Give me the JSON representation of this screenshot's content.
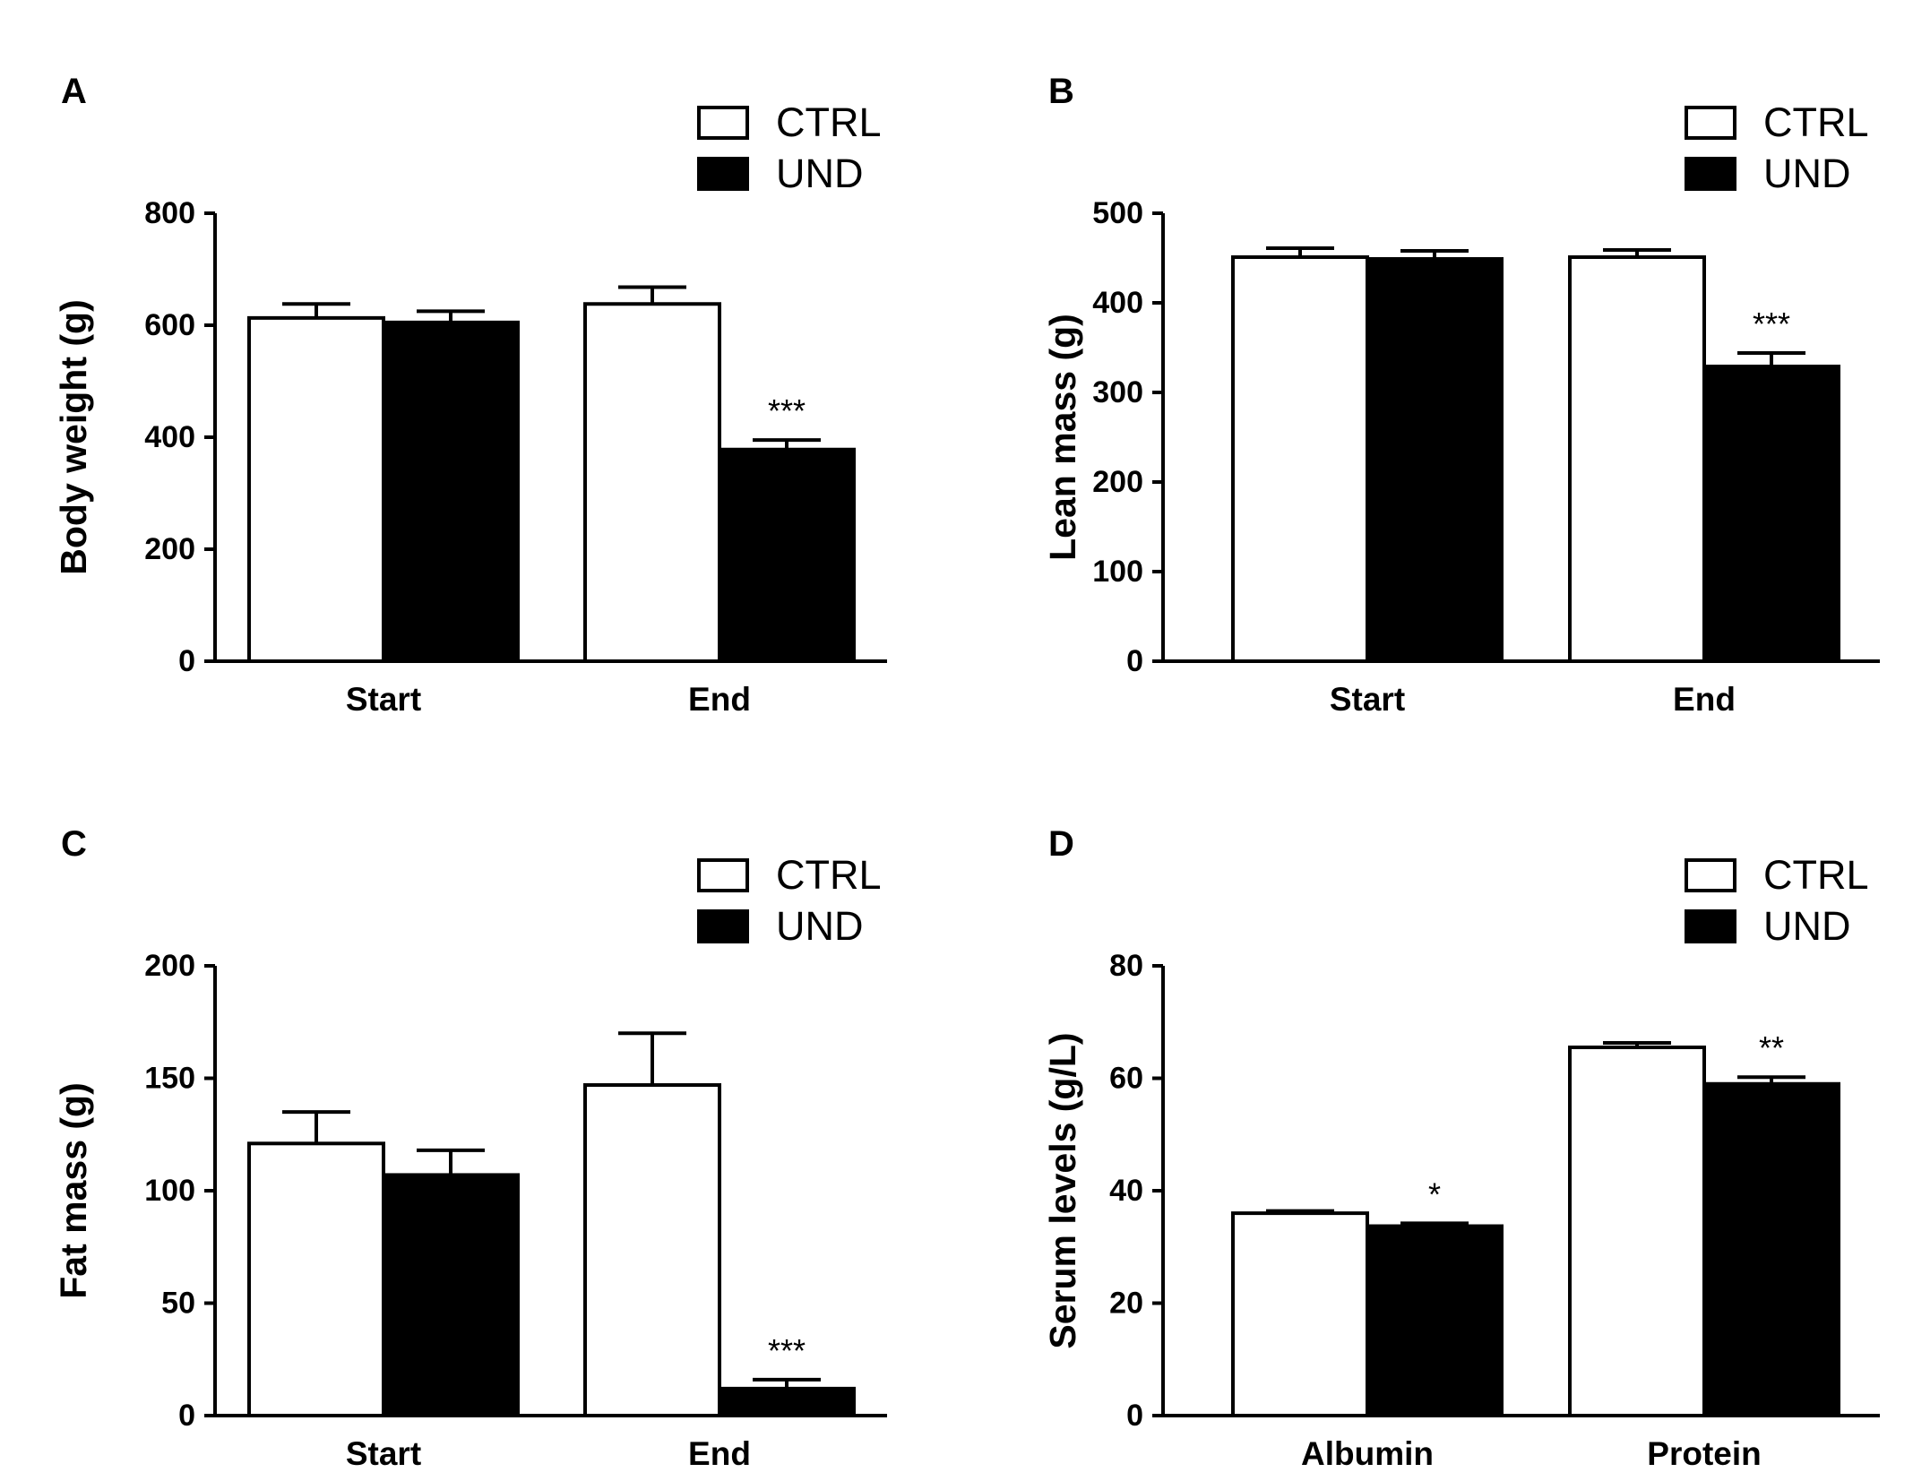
{
  "legend": {
    "ctrl": "CTRL",
    "und": "UND"
  },
  "colors": {
    "ctrl_fill": "#ffffff",
    "und_fill": "#000000",
    "stroke": "#000000"
  },
  "chart_data": [
    {
      "panel": "A",
      "type": "bar",
      "ylabel": "Body weight (g)",
      "xlabel": "",
      "ylim": [
        0,
        800
      ],
      "yticks": [
        0,
        200,
        400,
        600,
        800
      ],
      "categories": [
        "Start",
        "End"
      ],
      "series": [
        {
          "name": "CTRL",
          "values": [
            613,
            638
          ],
          "errors": [
            25,
            30
          ]
        },
        {
          "name": "UND",
          "values": [
            605,
            378
          ],
          "errors": [
            20,
            17
          ]
        }
      ],
      "annotations": [
        {
          "category": "End",
          "series": "UND",
          "text": "***"
        }
      ],
      "legend_position": "top-right"
    },
    {
      "panel": "B",
      "type": "bar",
      "ylabel": "Lean mass (g)",
      "xlabel": "",
      "ylim": [
        0,
        500
      ],
      "yticks": [
        0,
        100,
        200,
        300,
        400,
        500
      ],
      "categories": [
        "Start",
        "End"
      ],
      "series": [
        {
          "name": "CTRL",
          "values": [
            451,
            451
          ],
          "errors": [
            10,
            8
          ]
        },
        {
          "name": "UND",
          "values": [
            449,
            329
          ],
          "errors": [
            9,
            15
          ]
        }
      ],
      "annotations": [
        {
          "category": "End",
          "series": "UND",
          "text": "***"
        }
      ],
      "legend_position": "top-right"
    },
    {
      "panel": "C",
      "type": "bar",
      "ylabel": "Fat mass (g)",
      "xlabel": "",
      "ylim": [
        0,
        200
      ],
      "yticks": [
        0,
        50,
        100,
        150,
        200
      ],
      "categories": [
        "Start",
        "End"
      ],
      "series": [
        {
          "name": "CTRL",
          "values": [
            121,
            147
          ],
          "errors": [
            14,
            23
          ]
        },
        {
          "name": "UND",
          "values": [
            107,
            12
          ],
          "errors": [
            11,
            4
          ]
        }
      ],
      "annotations": [
        {
          "category": "End",
          "series": "UND",
          "text": "***"
        }
      ],
      "legend_position": "top-right"
    },
    {
      "panel": "D",
      "type": "bar",
      "ylabel": "Serum levels (g/L)",
      "xlabel": "",
      "ylim": [
        0,
        80
      ],
      "yticks": [
        0,
        20,
        40,
        60,
        80
      ],
      "categories": [
        "Albumin",
        "Protein"
      ],
      "series": [
        {
          "name": "CTRL",
          "values": [
            36,
            65.5
          ],
          "errors": [
            0.4,
            0.8
          ]
        },
        {
          "name": "UND",
          "values": [
            33.7,
            59
          ],
          "errors": [
            0.5,
            1.2
          ]
        }
      ],
      "annotations": [
        {
          "category": "Albumin",
          "series": "UND",
          "text": "*"
        },
        {
          "category": "Protein",
          "series": "UND",
          "text": "**"
        }
      ],
      "legend_position": "top-right"
    }
  ]
}
